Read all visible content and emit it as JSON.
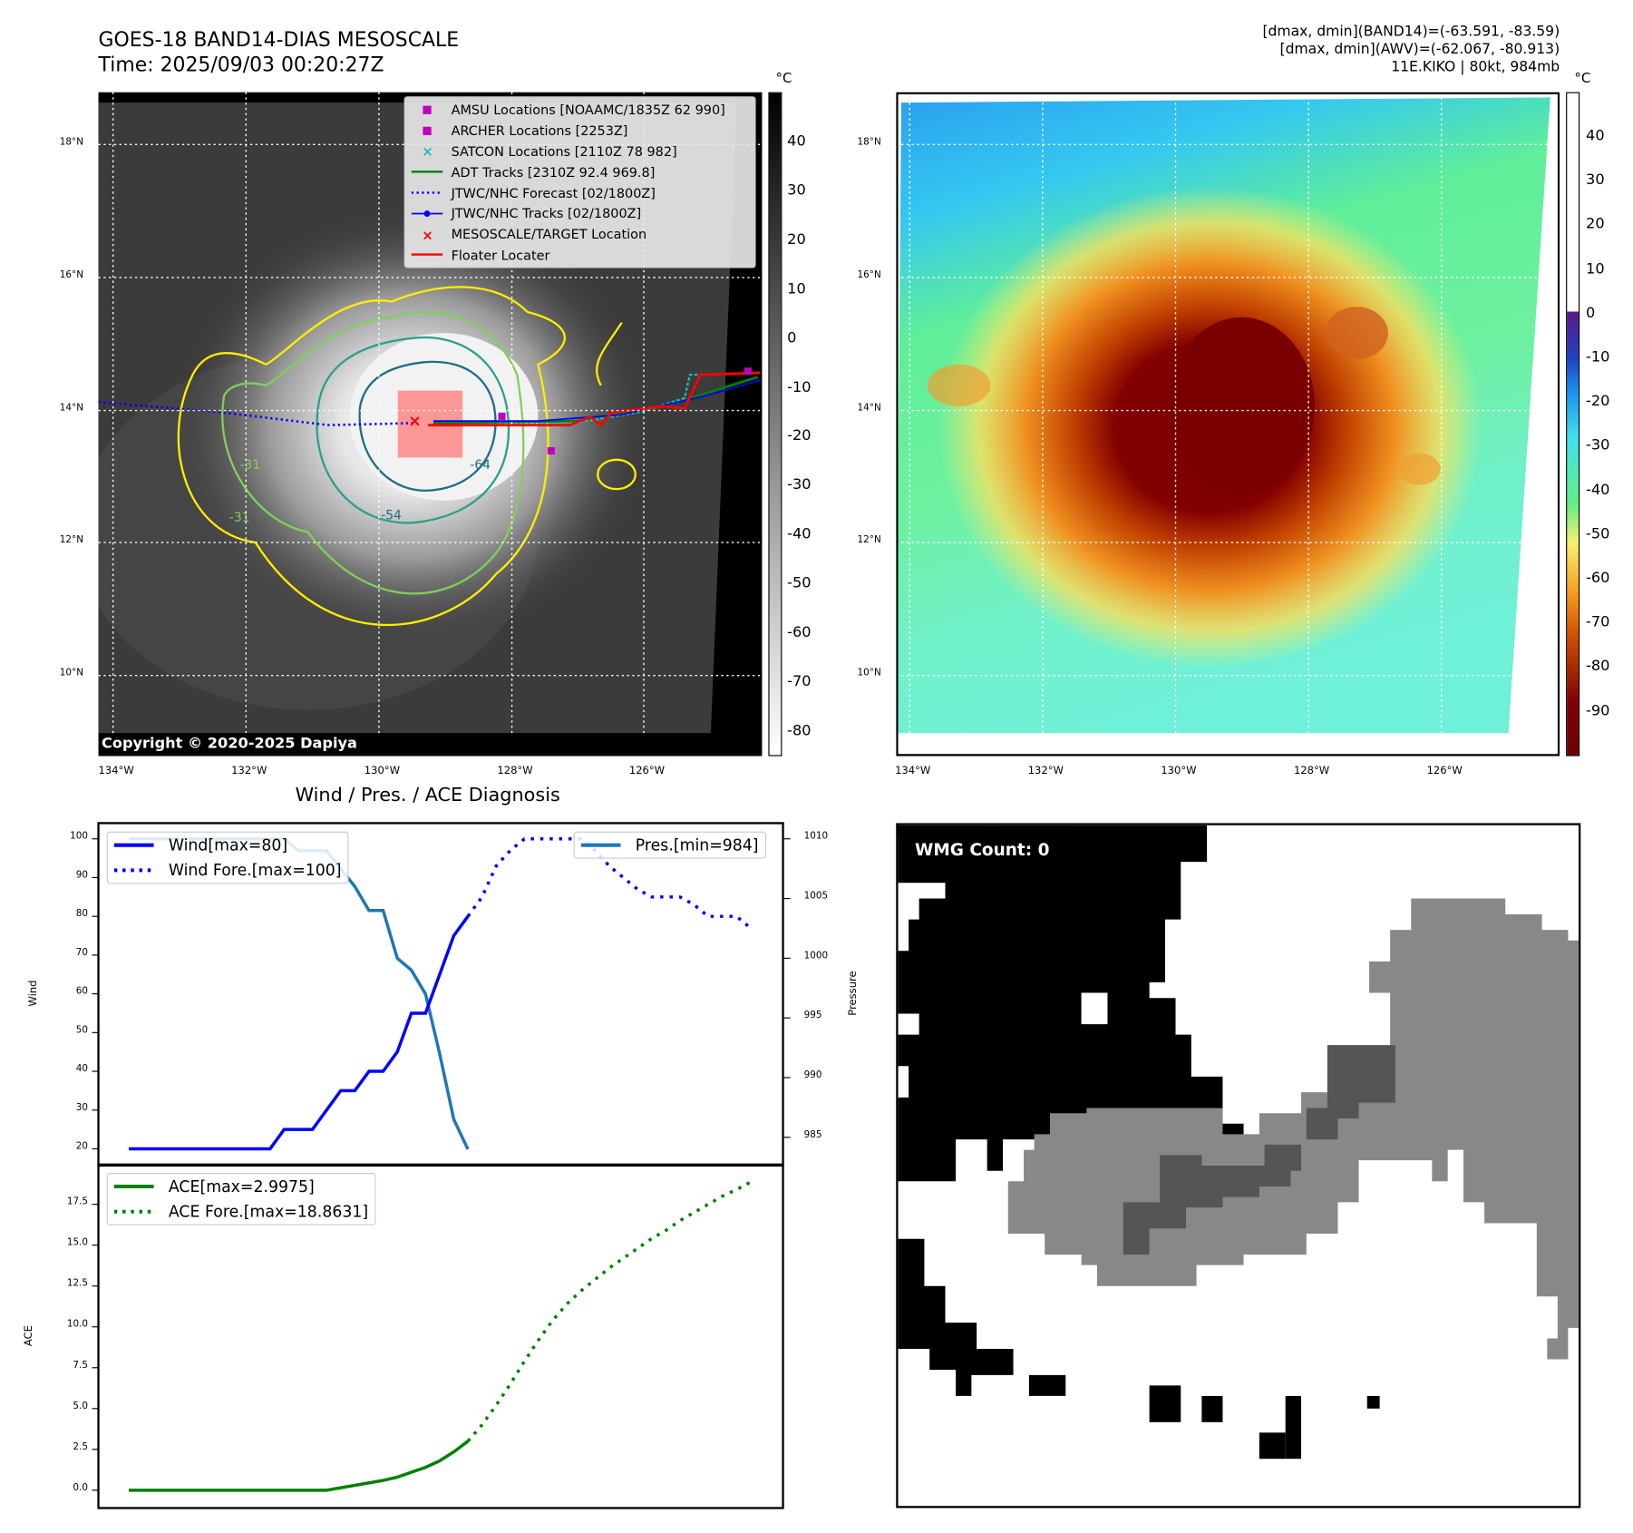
{
  "header": {
    "title_line1": "GOES-18 BAND14-DIAS MESOSCALE",
    "title_line2": "Time: 2025/09/03 00:20:27Z",
    "info_line1": "[dmax, dmin](BAND14)=(-63.591, -83.59)",
    "info_line2": "[dmax, dmin](AWV)=(-62.067, -80.913)",
    "info_line3": "11E.KIKO | 80kt, 984mb"
  },
  "maps": {
    "lon_labels": [
      "134°W",
      "132°W",
      "130°W",
      "128°W",
      "126°W"
    ],
    "lat_labels": [
      "18°N",
      "16°N",
      "14°N",
      "12°N",
      "10°N"
    ],
    "copyright": "Copyright © 2020-2025 Dapiya",
    "unit": "°C",
    "left_colorbar_ticks": [
      40,
      30,
      20,
      10,
      0,
      -10,
      -20,
      -30,
      -40,
      -50,
      -60,
      -70,
      -80
    ],
    "right_colorbar_ticks": [
      40,
      30,
      20,
      10,
      0,
      -10,
      -20,
      -30,
      -40,
      -50,
      -60,
      -70,
      -80,
      -90
    ],
    "legend": [
      {
        "label": "AMSU Locations [NOAAMC/1835Z 62 990]",
        "color": "#c000c0",
        "icon": "square-marker"
      },
      {
        "label": "ARCHER Locations [2253Z]",
        "color": "#c000c0",
        "icon": "square-marker"
      },
      {
        "label": "SATCON Locations [2110Z 78 982]",
        "color": "#17bfbf",
        "icon": "x-marker"
      },
      {
        "label": "ADT Tracks [2310Z 92.4 969.8]",
        "color": "#008000",
        "icon": "line"
      },
      {
        "label": "JTWC/NHC Forecast [02/1800Z]",
        "color": "#0000ff",
        "icon": "dotted-line"
      },
      {
        "label": "JTWC/NHC Tracks [02/1800Z]",
        "color": "#0000ff",
        "icon": "line-dot"
      },
      {
        "label": "MESOSCALE/TARGET Location",
        "color": "#ff0000",
        "icon": "x-marker"
      },
      {
        "label": "Floater Locater",
        "color": "#ff0000",
        "icon": "line"
      }
    ],
    "contour_labels": [
      "-64",
      "-54",
      "-31",
      "-31"
    ]
  },
  "wmg": {
    "label": "WMG Count: 0"
  },
  "chart_data": [
    {
      "type": "line",
      "title": "Wind / Pres. / ACE Diagnosis",
      "ylabel": "Wind",
      "y2label": "Pressure",
      "ylim": [
        18,
        102
      ],
      "y2lim": [
        983,
        1011
      ],
      "yticks": [
        20,
        30,
        40,
        50,
        60,
        70,
        80,
        90,
        100
      ],
      "y2ticks": [
        985,
        990,
        995,
        1000,
        1005,
        1010
      ],
      "series": [
        {
          "name": "Wind[max=80]",
          "color": "#0000ff",
          "style": "solid",
          "x_start": 0,
          "values": [
            20,
            20,
            20,
            20,
            20,
            20,
            20,
            20,
            20,
            20,
            20,
            25,
            25,
            25,
            30,
            35,
            35,
            40,
            40,
            45,
            55,
            55,
            65,
            75,
            80
          ]
        },
        {
          "name": "Wind Fore.[max=100]",
          "color": "#0000ff",
          "style": "dotted",
          "x_start": 24,
          "values": [
            80,
            85,
            93,
            97,
            100,
            100,
            100,
            100,
            100,
            97,
            93,
            90,
            87,
            85,
            85,
            85,
            83,
            80,
            80,
            80,
            77
          ]
        },
        {
          "name": "Pres.[min=984]",
          "color": "#1f77b4",
          "style": "solid",
          "axis": "right",
          "x_start": 0,
          "values": [
            1010,
            1010,
            1010,
            1010,
            1010,
            1010,
            1010,
            1010,
            1010,
            1010,
            1010,
            1010,
            1009,
            1009,
            1009,
            1007.5,
            1006,
            1004,
            1004,
            1000,
            999,
            997,
            992,
            986.5,
            984
          ]
        }
      ]
    },
    {
      "type": "line",
      "ylabel": "ACE",
      "ylim": [
        -0.8,
        19.8
      ],
      "yticks": [
        0.0,
        2.5,
        5.0,
        7.5,
        10.0,
        12.5,
        15.0,
        17.5
      ],
      "series": [
        {
          "name": "ACE[max=2.9975]",
          "color": "#008000",
          "style": "solid",
          "x_start": 0,
          "values": [
            0,
            0,
            0,
            0,
            0,
            0,
            0,
            0,
            0,
            0,
            0,
            0,
            0,
            0,
            0,
            0.15,
            0.3,
            0.45,
            0.6,
            0.8,
            1.1,
            1.4,
            1.8,
            2.35,
            3.0
          ]
        },
        {
          "name": "ACE Fore.[max=18.8631]",
          "color": "#008000",
          "style": "dotted",
          "x_start": 24,
          "values": [
            3.0,
            4.0,
            5.2,
            6.5,
            7.9,
            9.2,
            10.4,
            11.4,
            12.2,
            12.9,
            13.6,
            14.2,
            14.8,
            15.4,
            15.9,
            16.5,
            17.0,
            17.5,
            18.0,
            18.4,
            18.86
          ]
        }
      ]
    }
  ]
}
